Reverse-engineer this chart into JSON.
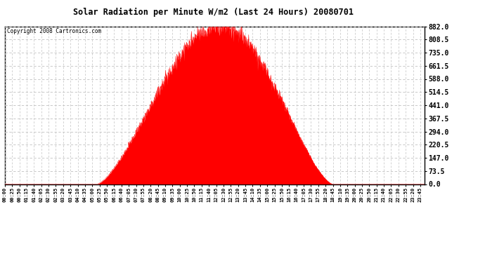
{
  "title": "Solar Radiation per Minute W/m2 (Last 24 Hours) 20080701",
  "copyright": "Copyright 2008 Cartronics.com",
  "fill_color": "#FF0000",
  "line_color": "#FF0000",
  "background_color": "#FFFFFF",
  "plot_bg_color": "#FFFFFF",
  "grid_color": "#C0C0C0",
  "dashed_line_color": "#FF0000",
  "yticks": [
    0.0,
    73.5,
    147.0,
    220.5,
    294.0,
    367.5,
    441.0,
    514.5,
    588.0,
    661.5,
    735.0,
    808.5,
    882.0
  ],
  "ymax": 882.0,
  "ymin": 0.0,
  "total_minutes": 1440,
  "peak_value": 882.0,
  "sunrise_minute": 315,
  "sunset_minute": 1125,
  "peak_minute": 740
}
